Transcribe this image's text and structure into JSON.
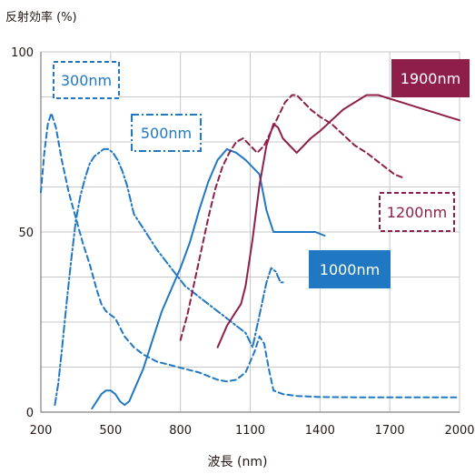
{
  "chart_data": {
    "type": "line",
    "title": "",
    "ylabel": "反射効率 (%)",
    "xlabel": "波長 (nm)",
    "xlim": [
      200,
      2000
    ],
    "ylim": [
      0,
      100
    ],
    "x_ticks": [
      200,
      500,
      800,
      1100,
      1400,
      1700,
      2000
    ],
    "y_ticks": [
      0,
      50,
      100
    ],
    "grid": true,
    "colors": {
      "blue": "#1f78c1",
      "wine": "#8e1f4b",
      "grid": "#c8c8c8",
      "axis": "#808080"
    },
    "series": [
      {
        "name": "300nm",
        "style": "dashed",
        "color": "#1f78c1",
        "x": [
          200,
          215,
          230,
          245,
          265,
          290,
          320,
          350,
          380,
          410,
          440,
          460,
          480,
          500,
          520,
          560,
          600,
          640,
          700,
          760,
          820,
          880,
          920,
          960,
          1000,
          1040,
          1080,
          1100,
          1120,
          1140,
          1160,
          1180,
          1200,
          1240,
          1300,
          1400,
          1600,
          1800,
          2000
        ],
        "y": [
          61,
          72,
          80,
          83,
          79,
          70,
          61,
          54,
          47,
          41,
          34,
          30,
          28,
          27,
          26,
          21,
          18,
          16,
          14,
          13,
          12,
          11,
          10,
          9,
          8.5,
          9,
          11,
          14,
          17,
          21,
          19,
          12,
          6,
          5,
          4.5,
          4.2,
          4.1,
          4.1,
          4.1
        ]
      },
      {
        "name": "500nm",
        "style": "dashdot",
        "color": "#1f78c1",
        "x": [
          260,
          275,
          290,
          310,
          330,
          350,
          370,
          390,
          410,
          430,
          450,
          470,
          490,
          510,
          530,
          550,
          570,
          600,
          640,
          700,
          760,
          820,
          880,
          940,
          1000,
          1040,
          1080,
          1110,
          1130,
          1150,
          1170,
          1190,
          1210,
          1230,
          1250
        ],
        "y": [
          2,
          8,
          17,
          30,
          42,
          53,
          60,
          65,
          69,
          71,
          72,
          73,
          73,
          72,
          70,
          67,
          63,
          55,
          51,
          45,
          40,
          35,
          32,
          29,
          26,
          24,
          22,
          18,
          24,
          30,
          36,
          40,
          39,
          36,
          36
        ]
      },
      {
        "name": "1000nm",
        "style": "solid",
        "color": "#1f78c1",
        "x": [
          420,
          440,
          460,
          480,
          500,
          520,
          540,
          560,
          580,
          600,
          640,
          680,
          720,
          760,
          800,
          840,
          880,
          920,
          960,
          1000,
          1040,
          1080,
          1110,
          1140,
          1170,
          1200,
          1260,
          1320,
          1380,
          1420
        ],
        "y": [
          1,
          3,
          5,
          6,
          6,
          5,
          3,
          2,
          3,
          6,
          12,
          20,
          28,
          34,
          40,
          47,
          56,
          64,
          70,
          73,
          72,
          70,
          68,
          66,
          56,
          50,
          50,
          50,
          50,
          49
        ]
      },
      {
        "name": "1200nm",
        "style": "dashed",
        "color": "#8e1f4b",
        "x": [
          800,
          830,
          860,
          890,
          920,
          950,
          980,
          1010,
          1040,
          1070,
          1100,
          1130,
          1160,
          1190,
          1220,
          1250,
          1280,
          1300,
          1330,
          1360,
          1400,
          1450,
          1500,
          1550,
          1600,
          1640,
          1680,
          1720,
          1760
        ],
        "y": [
          20,
          27,
          36,
          45,
          54,
          62,
          68,
          72,
          75,
          76,
          74,
          72,
          74,
          78,
          82,
          86,
          88,
          88,
          86,
          84,
          82,
          80,
          77,
          74,
          72,
          70,
          68,
          66,
          65
        ]
      },
      {
        "name": "1900nm",
        "style": "solid",
        "color": "#8e1f4b",
        "x": [
          960,
          980,
          1000,
          1020,
          1040,
          1060,
          1080,
          1110,
          1140,
          1170,
          1200,
          1220,
          1240,
          1270,
          1300,
          1330,
          1360,
          1400,
          1450,
          1500,
          1550,
          1600,
          1650,
          1700,
          1750,
          1800,
          1850,
          1900,
          1950,
          2000
        ],
        "y": [
          18,
          21,
          24,
          26,
          28,
          30,
          35,
          48,
          63,
          74,
          80,
          79,
          76,
          74,
          72,
          74,
          76,
          78,
          81,
          84,
          86,
          88,
          88,
          87,
          86,
          85,
          84,
          83,
          82,
          81
        ]
      }
    ],
    "annotations": [
      {
        "text": "300nm",
        "style": "dashed-box"
      },
      {
        "text": "500nm",
        "style": "dashdot-box"
      },
      {
        "text": "1000nm",
        "style": "filled-blue"
      },
      {
        "text": "1200nm",
        "style": "dashed-box-wine"
      },
      {
        "text": "1900nm",
        "style": "filled-wine"
      }
    ]
  }
}
